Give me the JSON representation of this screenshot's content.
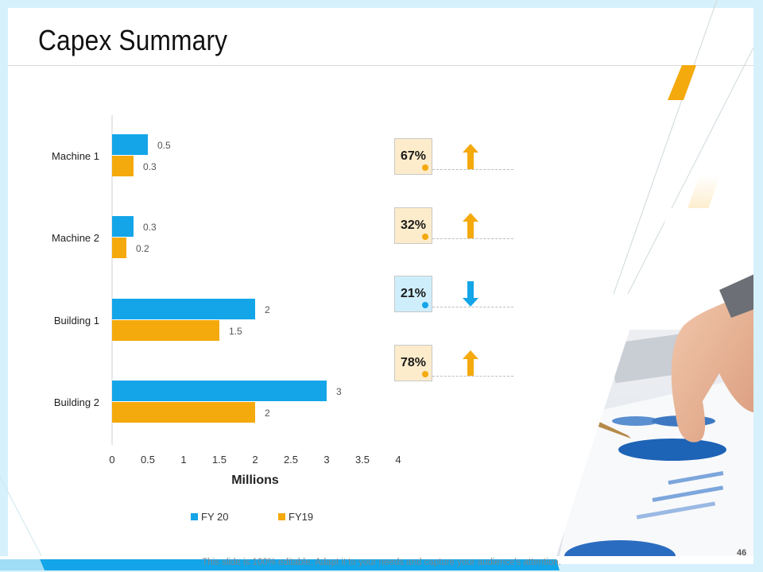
{
  "slide": {
    "title": "Capex Summary",
    "footer": "This slide is 100% editable. Adapt it to your needs and capture your audience's attention.",
    "page_number": "46"
  },
  "colors": {
    "fy20": "#13a5e8",
    "fy19": "#f4a90d",
    "kpi_up_bg": "#fdeccb",
    "kpi_down_bg": "#cfeefb",
    "accent_orange": "#f4a90d",
    "accent_blue": "#13a5e8"
  },
  "chart_data": {
    "type": "bar",
    "orientation": "horizontal",
    "categories": [
      "Machine 1",
      "Machine 2",
      "Building 1",
      "Building 2"
    ],
    "series": [
      {
        "name": "FY 20",
        "values": [
          0.5,
          0.3,
          2,
          3
        ]
      },
      {
        "name": "FY19",
        "values": [
          0.3,
          0.2,
          1.5,
          2
        ]
      }
    ],
    "data_labels": {
      "FY 20": [
        "0.5",
        "0.3",
        "2",
        "3"
      ],
      "FY19": [
        "0.3",
        "0.2",
        "1.5",
        "2"
      ]
    },
    "xlabel": "Millions",
    "ylabel": "",
    "xlim": [
      0,
      4
    ],
    "xticks": [
      "0",
      "0.5",
      "1",
      "1.5",
      "2",
      "2.5",
      "3",
      "3.5",
      "4"
    ],
    "grid": false,
    "legend_position": "bottom"
  },
  "kpis": [
    {
      "value": "67%",
      "direction": "up"
    },
    {
      "value": "32%",
      "direction": "up"
    },
    {
      "value": "21%",
      "direction": "down"
    },
    {
      "value": "78%",
      "direction": "up"
    }
  ]
}
